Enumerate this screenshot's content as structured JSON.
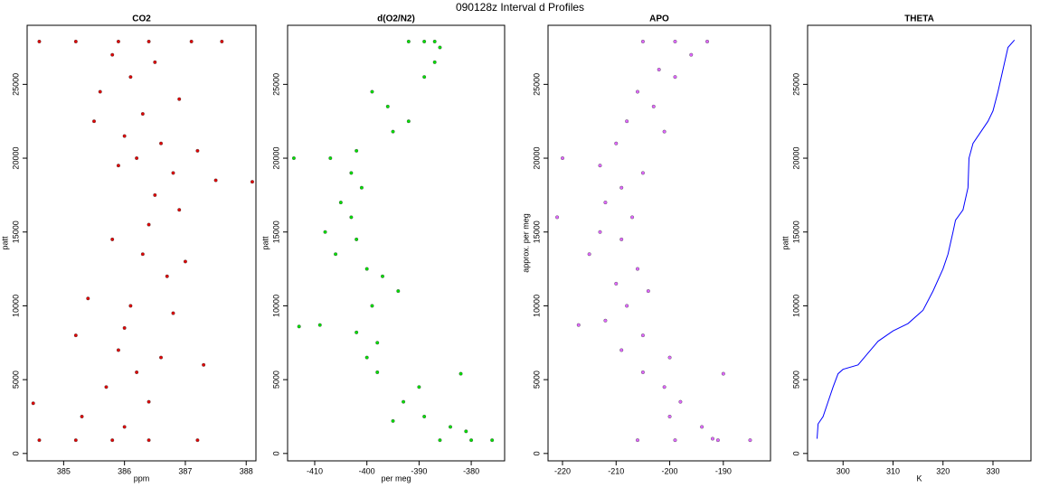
{
  "title": "090128z   Interval d Profiles",
  "chart_data": [
    {
      "type": "scatter",
      "title": "CO2",
      "xlabel": "ppm",
      "ylabel": "patt",
      "color": "#e00000",
      "xlim": [
        384.4,
        388.16
      ],
      "ylim": [
        -500,
        29000
      ],
      "xticks": [
        385,
        386,
        387,
        388
      ],
      "yticks": [
        0,
        5000,
        10000,
        15000,
        20000,
        25000
      ],
      "x": [
        384.6,
        385.2,
        385.9,
        386.4,
        387.1,
        387.6,
        385.8,
        386.5,
        386.1,
        385.6,
        386.9,
        386.3,
        385.5,
        386.0,
        386.6,
        387.2,
        386.2,
        385.9,
        386.8,
        387.5,
        388.1,
        386.5,
        386.9,
        386.4,
        385.8,
        386.3,
        387.0,
        386.7,
        385.4,
        386.1,
        386.8,
        386.0,
        385.2,
        385.9,
        386.6,
        387.3,
        386.2,
        385.7,
        386.4,
        384.5,
        385.3,
        386.0,
        384.6,
        385.2,
        385.8,
        386.4,
        387.2
      ],
      "y": [
        27900,
        27900,
        27900,
        27900,
        27900,
        27900,
        27000,
        26500,
        25500,
        24500,
        24000,
        23000,
        22500,
        21500,
        21000,
        20500,
        20000,
        19500,
        19000,
        18500,
        18400,
        17500,
        16500,
        15500,
        14500,
        13500,
        13000,
        12000,
        10500,
        10000,
        9500,
        8500,
        8000,
        7000,
        6500,
        6000,
        5500,
        4500,
        3500,
        3400,
        2500,
        1800,
        900,
        900,
        900,
        900,
        900
      ]
    },
    {
      "type": "scatter",
      "title": "d(O2/N2)",
      "xlabel": "per meg",
      "ylabel": "patt",
      "color": "#00e000",
      "xlim": [
        -415.2,
        -373.6
      ],
      "ylim": [
        -500,
        29000
      ],
      "xticks": [
        -410,
        -400,
        -390,
        -380
      ],
      "yticks": [
        0,
        5000,
        10000,
        15000,
        20000,
        25000
      ],
      "x": [
        -392,
        -389,
        -387,
        -386,
        -387,
        -389,
        -399,
        -396,
        -392,
        -395,
        -402,
        -407,
        -414,
        -403,
        -401,
        -405,
        -403,
        -408,
        -402,
        -406,
        -400,
        -397,
        -394,
        -399,
        -409,
        -413,
        -402,
        -398,
        -400,
        -398,
        -390,
        -382,
        -393,
        -389,
        -395,
        -384,
        -381,
        -386,
        -380,
        -376
      ],
      "y": [
        27900,
        27900,
        27900,
        27500,
        26500,
        25500,
        24500,
        23500,
        22500,
        21800,
        20500,
        20000,
        20000,
        19000,
        18000,
        17000,
        16000,
        15000,
        14500,
        13500,
        12500,
        12000,
        11000,
        10000,
        8700,
        8600,
        8200,
        7500,
        6500,
        5500,
        4500,
        5400,
        3500,
        2500,
        2200,
        1800,
        1500,
        900,
        900,
        900
      ]
    },
    {
      "type": "scatter",
      "title": "APO",
      "ylabel": "approx. per meg",
      "color": "#e066ff",
      "xlim": [
        -222.7,
        -181.2
      ],
      "ylim": [
        -500,
        29000
      ],
      "xticks": [
        -220,
        -210,
        -200,
        -190
      ],
      "yticks": [
        0,
        5000,
        10000,
        15000,
        20000,
        25000
      ],
      "x": [
        -205,
        -199,
        -193,
        -196,
        -202,
        -199,
        -206,
        -203,
        -208,
        -201,
        -210,
        -220,
        -213,
        -205,
        -209,
        -212,
        -207,
        -221,
        -213,
        -209,
        -215,
        -206,
        -210,
        -204,
        -208,
        -212,
        -217,
        -205,
        -209,
        -200,
        -205,
        -190,
        -201,
        -198,
        -200,
        -194,
        -192,
        -206,
        -199,
        -191,
        -185
      ],
      "y": [
        27900,
        27900,
        27900,
        27000,
        26000,
        25500,
        24500,
        23500,
        22500,
        21800,
        21000,
        20000,
        19500,
        19000,
        18000,
        17000,
        16000,
        16000,
        15000,
        14500,
        13500,
        12500,
        11500,
        11000,
        10000,
        9000,
        8700,
        8000,
        7000,
        6500,
        5500,
        5400,
        4500,
        3500,
        2500,
        1800,
        1000,
        900,
        900,
        900,
        900
      ]
    },
    {
      "type": "line",
      "title": "THETA",
      "xlabel": "K",
      "ylabel": "patt",
      "color": "#0000ff",
      "xlim": [
        292.9,
        337.6
      ],
      "ylim": [
        -500,
        29000
      ],
      "xticks": [
        300,
        310,
        320,
        330
      ],
      "yticks": [
        0,
        5000,
        10000,
        15000,
        20000,
        25000
      ],
      "x": [
        294.8,
        295,
        296,
        297,
        298,
        299,
        300,
        303,
        305,
        307,
        310,
        313,
        316,
        318,
        320,
        321,
        322,
        322.5,
        324,
        325,
        325.2,
        326,
        329,
        330,
        331,
        332,
        333,
        334.3
      ],
      "y": [
        1000,
        2000,
        2500,
        3500,
        4500,
        5400,
        5700,
        6000,
        6800,
        7600,
        8300,
        8800,
        9700,
        11000,
        12500,
        13500,
        15000,
        15800,
        16500,
        18000,
        20000,
        21000,
        22500,
        23200,
        24500,
        26000,
        27500,
        28000
      ]
    }
  ]
}
